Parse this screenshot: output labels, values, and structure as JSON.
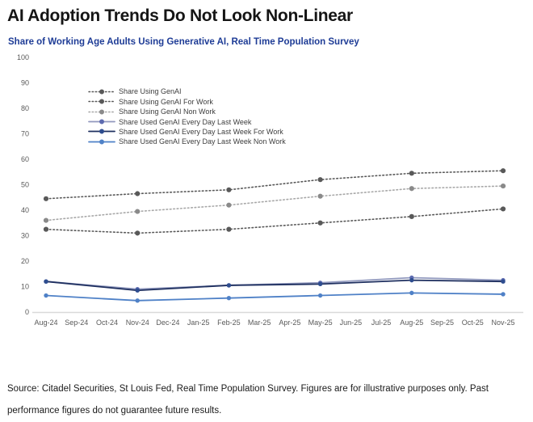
{
  "header": {
    "title": "AI Adoption Trends Do Not Look Non-Linear",
    "subtitle": "Share of Working Age Adults Using Generative AI, Real Time Population Survey",
    "subtitle_color": "#1e3c96"
  },
  "footer": {
    "source_text": "Source: Citadel Securities, St Louis Fed, Real Time Population Survey. Figures are for illustrative purposes only. Past performance figures do not guarantee future results."
  },
  "chart_data": {
    "type": "line",
    "title": "Share of Working Age Adults Using Generative AI, Real Time Population Survey",
    "xlabel": "",
    "ylabel": "",
    "ylim": [
      0,
      100
    ],
    "y_tick_step": 10,
    "grid": false,
    "legend_position": "upper-left-inside",
    "axis_color": "#d9d9d9",
    "tick_label_color": "#595959",
    "categories": [
      "Aug-24",
      "Sep-24",
      "Oct-24",
      "Nov-24",
      "Dec-24",
      "Jan-25",
      "Feb-25",
      "Mar-25",
      "Apr-25",
      "May-25",
      "Jun-25",
      "Jul-25",
      "Aug-25",
      "Sep-25",
      "Oct-25",
      "Nov-25"
    ],
    "data_point_indices": [
      0,
      3,
      6,
      9,
      12,
      15
    ],
    "data_point_months": [
      "Aug-24",
      "Nov-24",
      "Feb-25",
      "May-25",
      "Aug-25",
      "Nov-25"
    ],
    "series": [
      {
        "name": "Share Using GenAI",
        "style": "dotted",
        "color": "#595959",
        "marker_color": "#595959",
        "values": [
          44.5,
          46.5,
          48,
          52,
          54.5,
          55.5
        ]
      },
      {
        "name": "Share Using GenAI For Work",
        "style": "dotted",
        "color": "#595959",
        "marker_color": "#595959",
        "values": [
          32.5,
          31,
          32.5,
          35,
          37.5,
          40.5
        ]
      },
      {
        "name": "Share Using GenAI Non Work",
        "style": "dotted",
        "color": "#a8a8a8",
        "marker_color": "#8a8a8a",
        "values": [
          36,
          39.5,
          42,
          45.5,
          48.5,
          49.5
        ]
      },
      {
        "name": "Share Used GenAI Every Day Last Week",
        "style": "solid",
        "color": "#9199be",
        "marker_color": "#5d6bb0",
        "values": [
          12,
          9,
          10.5,
          11.5,
          13.5,
          12.5
        ]
      },
      {
        "name": "Share Used GenAI Every Day Last Week For Work",
        "style": "solid",
        "color": "#1f3060",
        "marker_color": "#2e4d8f",
        "values": [
          12,
          8.5,
          10.5,
          11,
          12.5,
          12
        ]
      },
      {
        "name": "Share Used GenAI Every Day Last Week Non Work",
        "style": "solid",
        "color": "#4f81c7",
        "marker_color": "#4f81c7",
        "values": [
          6.5,
          4.5,
          5.5,
          6.5,
          7.5,
          7
        ]
      }
    ]
  }
}
